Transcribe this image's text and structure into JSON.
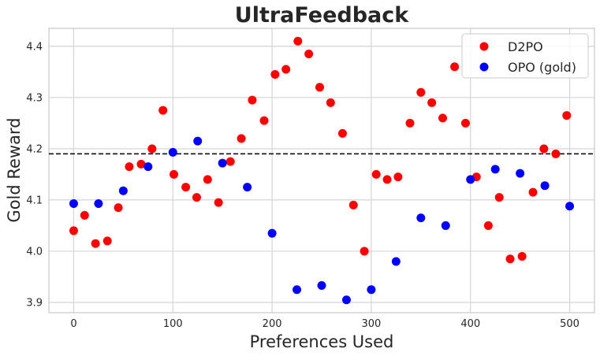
{
  "chart_data": {
    "type": "scatter",
    "title": "UltraFeedback",
    "xlabel": "Preferences Used",
    "ylabel": "Gold Reward",
    "xlim": [
      -25,
      525
    ],
    "ylim": [
      3.88,
      4.435
    ],
    "xticks": [
      0,
      100,
      200,
      300,
      400,
      500
    ],
    "yticks": [
      3.9,
      4.0,
      4.1,
      4.2,
      4.3,
      4.4
    ],
    "xtick_labels": [
      "0",
      "100",
      "200",
      "300",
      "400",
      "500"
    ],
    "ytick_labels": [
      "3.9",
      "4.0",
      "4.1",
      "4.2",
      "4.3",
      "4.4"
    ],
    "grid": true,
    "legend_position": "top-right",
    "reference_line": {
      "y": 4.19,
      "style": "dashed",
      "color": "#111111"
    },
    "series": [
      {
        "name": "D2PO",
        "color": "#ff0000",
        "x": [
          0,
          11,
          22,
          34,
          45,
          56,
          68,
          79,
          90,
          101,
          113,
          124,
          135,
          146,
          158,
          169,
          180,
          192,
          203,
          214,
          226,
          237,
          248,
          259,
          271,
          282,
          293,
          305,
          316,
          327,
          339,
          350,
          361,
          372,
          384,
          395,
          406,
          418,
          429,
          440,
          452,
          463,
          474,
          486,
          497
        ],
        "y": [
          4.04,
          4.07,
          4.015,
          4.02,
          4.085,
          4.165,
          4.17,
          4.2,
          4.275,
          4.15,
          4.125,
          4.105,
          4.14,
          4.095,
          4.175,
          4.22,
          4.295,
          4.255,
          4.345,
          4.355,
          4.41,
          4.385,
          4.32,
          4.29,
          4.23,
          4.09,
          4.0,
          4.15,
          4.14,
          4.145,
          4.25,
          4.31,
          4.29,
          4.26,
          4.36,
          4.25,
          4.145,
          4.05,
          4.105,
          3.985,
          3.99,
          4.115,
          4.2,
          4.19,
          4.265
        ]
      },
      {
        "name": "OPO (gold)",
        "color": "#0000ff",
        "x": [
          0,
          25,
          50,
          75,
          100,
          125,
          150,
          175,
          200,
          225,
          250,
          275,
          300,
          325,
          350,
          375,
          400,
          425,
          450,
          475,
          500
        ],
        "y": [
          4.093,
          4.093,
          4.118,
          4.165,
          4.193,
          4.215,
          4.172,
          4.125,
          4.035,
          3.925,
          3.933,
          3.905,
          3.925,
          3.98,
          4.065,
          4.05,
          4.14,
          4.16,
          4.152,
          4.128,
          4.088
        ]
      }
    ]
  }
}
